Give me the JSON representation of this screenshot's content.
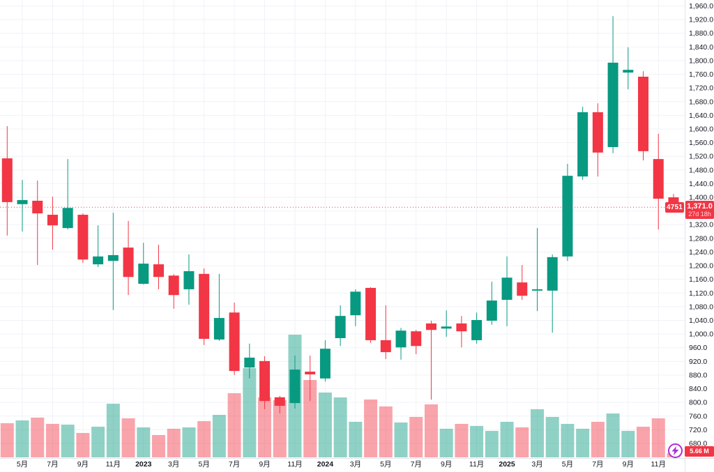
{
  "symbol": "4751",
  "price_label": {
    "price": "1,371.0",
    "countdown": "27d 18h"
  },
  "volume_label": "5.66 M",
  "colors": {
    "up": "#089981",
    "down": "#f23645",
    "vol_up": "rgba(8,153,129,0.45)",
    "vol_down": "rgba(242,54,69,0.45)",
    "label_bg": "#f23645",
    "axis_text": "#131722",
    "grid": "#f0f2f6",
    "border": "#e0e3eb",
    "bolt_icon": "#ab2fd6",
    "price_line": "#f23645"
  },
  "price_axis": {
    "min": 680,
    "max": 1960,
    "step": 40
  },
  "time_axis": [
    {
      "i": 1,
      "label": "5月",
      "bold": false
    },
    {
      "i": 3,
      "label": "7月",
      "bold": false
    },
    {
      "i": 5,
      "label": "9月",
      "bold": false
    },
    {
      "i": 7,
      "label": "11月",
      "bold": false
    },
    {
      "i": 9,
      "label": "2023",
      "bold": true
    },
    {
      "i": 11,
      "label": "3月",
      "bold": false
    },
    {
      "i": 13,
      "label": "5月",
      "bold": false
    },
    {
      "i": 15,
      "label": "7月",
      "bold": false
    },
    {
      "i": 17,
      "label": "9月",
      "bold": false
    },
    {
      "i": 19,
      "label": "11月",
      "bold": false
    },
    {
      "i": 21,
      "label": "2024",
      "bold": true
    },
    {
      "i": 23,
      "label": "3月",
      "bold": false
    },
    {
      "i": 25,
      "label": "5月",
      "bold": false
    },
    {
      "i": 27,
      "label": "7月",
      "bold": false
    },
    {
      "i": 29,
      "label": "9月",
      "bold": false
    },
    {
      "i": 31,
      "label": "11月",
      "bold": false
    },
    {
      "i": 33,
      "label": "2025",
      "bold": true
    },
    {
      "i": 35,
      "label": "3月",
      "bold": false
    },
    {
      "i": 37,
      "label": "5月",
      "bold": false
    },
    {
      "i": 39,
      "label": "7月",
      "bold": false
    },
    {
      "i": 41,
      "label": "9月",
      "bold": false
    },
    {
      "i": 43,
      "label": "11月",
      "bold": false
    }
  ],
  "chart_data": {
    "type": "candlestick",
    "title": "4751 monthly candlestick with volume",
    "current_price": 1371.0,
    "x": [
      "2022-04",
      "2022-05",
      "2022-06",
      "2022-07",
      "2022-08",
      "2022-09",
      "2022-10",
      "2022-11",
      "2022-12",
      "2023-01",
      "2023-02",
      "2023-03",
      "2023-04",
      "2023-05",
      "2023-06",
      "2023-07",
      "2023-08",
      "2023-09",
      "2023-10",
      "2023-11",
      "2023-12",
      "2024-01",
      "2024-02",
      "2024-03",
      "2024-04",
      "2024-05",
      "2024-06",
      "2024-07",
      "2024-08",
      "2024-09",
      "2024-10",
      "2024-11",
      "2024-12",
      "2025-01",
      "2025-02",
      "2025-03",
      "2025-04",
      "2025-05",
      "2025-06",
      "2025-07",
      "2025-08",
      "2025-09",
      "2025-10",
      "2025-11",
      "2025-12"
    ],
    "series": [
      {
        "name": "ohlc",
        "format": "[open, high, low, close]",
        "values": [
          [
            1514,
            1608,
            1288,
            1386
          ],
          [
            1380,
            1451,
            1300,
            1392
          ],
          [
            1390,
            1449,
            1202,
            1353
          ],
          [
            1349,
            1402,
            1247,
            1318
          ],
          [
            1310,
            1512,
            1306,
            1369
          ],
          [
            1349,
            1353,
            1208,
            1218
          ],
          [
            1204,
            1318,
            1196,
            1227
          ],
          [
            1214,
            1355,
            1070,
            1231
          ],
          [
            1253,
            1331,
            1114,
            1167
          ],
          [
            1147,
            1267,
            1145,
            1206
          ],
          [
            1204,
            1261,
            1131,
            1167
          ],
          [
            1171,
            1175,
            1074,
            1114
          ],
          [
            1131,
            1233,
            1086,
            1184
          ],
          [
            1176,
            1192,
            968,
            986
          ],
          [
            984,
            1176,
            980,
            1047
          ],
          [
            1063,
            1092,
            880,
            892
          ],
          [
            902,
            972,
            870,
            931
          ],
          [
            921,
            935,
            780,
            804
          ],
          [
            815,
            819,
            768,
            790
          ],
          [
            798,
            937,
            782,
            896
          ],
          [
            890,
            937,
            804,
            882
          ],
          [
            870,
            982,
            861,
            957
          ],
          [
            988,
            1084,
            965,
            1053
          ],
          [
            1055,
            1131,
            1023,
            1124
          ],
          [
            1135,
            1137,
            974,
            982
          ],
          [
            982,
            1084,
            927,
            947
          ],
          [
            961,
            1018,
            925,
            1010
          ],
          [
            1008,
            1012,
            941,
            965
          ],
          [
            1031,
            1039,
            808,
            1012
          ],
          [
            1016,
            1069,
            992,
            1022
          ],
          [
            1031,
            1053,
            961,
            1008
          ],
          [
            982,
            1063,
            972,
            1041
          ],
          [
            1039,
            1153,
            1027,
            1098
          ],
          [
            1100,
            1227,
            1023,
            1165
          ],
          [
            1151,
            1202,
            1100,
            1112
          ],
          [
            1127,
            1310,
            1067,
            1131
          ],
          [
            1127,
            1233,
            1004,
            1225
          ],
          [
            1227,
            1498,
            1214,
            1463
          ],
          [
            1461,
            1665,
            1451,
            1649
          ],
          [
            1649,
            1675,
            1461,
            1531
          ],
          [
            1547,
            1930,
            1529,
            1794
          ],
          [
            1765,
            1839,
            1716,
            1773
          ],
          [
            1753,
            1769,
            1508,
            1535
          ],
          [
            1512,
            1586,
            1306,
            1396
          ],
          [
            1400,
            1410,
            1368,
            1371
          ]
        ]
      },
      {
        "name": "volume_millions",
        "values": [
          46.2,
          50.0,
          53.8,
          45.3,
          44.3,
          33.0,
          41.5,
          72.6,
          52.8,
          40.6,
          30.2,
          38.7,
          40.6,
          49.0,
          57.5,
          86.8,
          120.7,
          81.1,
          77.4,
          166.0,
          104.7,
          87.7,
          81.1,
          48.1,
          78.3,
          68.9,
          47.2,
          54.7,
          71.7,
          38.7,
          45.3,
          42.5,
          35.8,
          48.1,
          40.6,
          65.1,
          54.7,
          45.3,
          38.7,
          48.1,
          59.4,
          35.8,
          41.5,
          52.8,
          5.66
        ]
      }
    ],
    "ylabel": "",
    "xlabel": "",
    "ylim": [
      680,
      1960
    ],
    "legend": "none",
    "grid": true
  }
}
